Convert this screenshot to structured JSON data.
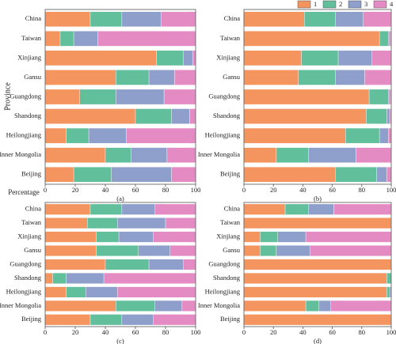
{
  "chart_data": [
    {
      "type": "bar",
      "caption": "(a)",
      "ylabel": "Province",
      "xlabel": "Percentage",
      "categories": [
        "China",
        "Taiwan",
        "Xinjiang",
        "Gansu",
        "Guangdong",
        "Shandong",
        "Heilongjiang",
        "Inner Mongolia",
        "Beijing"
      ],
      "series": [
        {
          "name": "1",
          "color": "#f4945f",
          "values": [
            30,
            10,
            74,
            47,
            23,
            60,
            14,
            40,
            19
          ]
        },
        {
          "name": "2",
          "color": "#62bf9b",
          "values": [
            21,
            9,
            18,
            22,
            24,
            24,
            15,
            17,
            25
          ]
        },
        {
          "name": "3",
          "color": "#8e9fcc",
          "values": [
            26,
            16,
            6,
            17,
            32,
            12,
            25,
            24,
            40
          ]
        },
        {
          "name": "4",
          "color": "#e58bc4",
          "values": [
            23,
            65,
            2,
            14,
            21,
            4,
            46,
            19,
            16
          ]
        }
      ],
      "xlim": [
        0,
        100
      ],
      "xticks": [
        0,
        20,
        40,
        60,
        80,
        100
      ],
      "legend": "top-right"
    },
    {
      "type": "bar",
      "caption": "(b)",
      "categories": [
        "China",
        "Taiwan",
        "Xinjiang",
        "Gansu",
        "Guangdong",
        "Shandong",
        "Heilongjiang",
        "Inner Mongolia",
        "Beijing"
      ],
      "series": [
        {
          "name": "1",
          "color": "#f4945f",
          "values": [
            41,
            92,
            39,
            37,
            85,
            83,
            69,
            22,
            62
          ]
        },
        {
          "name": "2",
          "color": "#62bf9b",
          "values": [
            21,
            6,
            25,
            25,
            13,
            14,
            23,
            22,
            28
          ]
        },
        {
          "name": "3",
          "color": "#8e9fcc",
          "values": [
            19,
            1,
            23,
            20,
            1,
            2,
            6,
            32,
            7
          ]
        },
        {
          "name": "4",
          "color": "#e58bc4",
          "values": [
            19,
            1,
            13,
            18,
            1,
            1,
            2,
            24,
            3
          ]
        }
      ],
      "xlim": [
        0,
        100
      ],
      "xticks": [
        0,
        20,
        40,
        60,
        80,
        100
      ]
    },
    {
      "type": "bar",
      "caption": "(c)",
      "categories": [
        "China",
        "Taiwan",
        "Xinjiang",
        "Gansu",
        "Guangdong",
        "Shandong",
        "Heilongjiang",
        "Inner Mongolia",
        "Beijing"
      ],
      "series": [
        {
          "name": "1",
          "color": "#f4945f",
          "values": [
            30,
            28,
            34,
            34,
            40,
            5,
            14,
            47,
            30
          ]
        },
        {
          "name": "2",
          "color": "#62bf9b",
          "values": [
            21,
            20,
            15,
            28,
            29,
            9,
            13,
            26,
            21
          ]
        },
        {
          "name": "3",
          "color": "#8e9fcc",
          "values": [
            22,
            32,
            23,
            21,
            23,
            25,
            21,
            18,
            21
          ]
        },
        {
          "name": "4",
          "color": "#e58bc4",
          "values": [
            27,
            20,
            28,
            17,
            8,
            61,
            52,
            9,
            28
          ]
        }
      ],
      "xlim": [
        0,
        100
      ],
      "xticks": [
        0,
        20,
        40,
        60,
        80,
        100
      ]
    },
    {
      "type": "bar",
      "caption": "(d)",
      "categories": [
        "China",
        "Taiwan",
        "Xinjiang",
        "Gansu",
        "Guangdong",
        "Shandong",
        "Heilongjiang",
        "Inner Mongolia",
        "Beijing"
      ],
      "series": [
        {
          "name": "1",
          "color": "#f4945f",
          "values": [
            28,
            100,
            11,
            11,
            100,
            97,
            97,
            42,
            100
          ]
        },
        {
          "name": "2",
          "color": "#62bf9b",
          "values": [
            16,
            0,
            12,
            11,
            0,
            3,
            2,
            9,
            0
          ]
        },
        {
          "name": "3",
          "color": "#8e9fcc",
          "values": [
            17,
            0,
            19,
            23,
            0,
            0,
            1,
            8,
            0
          ]
        },
        {
          "name": "4",
          "color": "#e58bc4",
          "values": [
            39,
            0,
            58,
            55,
            0,
            0,
            0,
            41,
            0
          ]
        }
      ],
      "xlim": [
        0,
        100
      ],
      "xticks": [
        0,
        20,
        40,
        60,
        80,
        100
      ]
    }
  ]
}
